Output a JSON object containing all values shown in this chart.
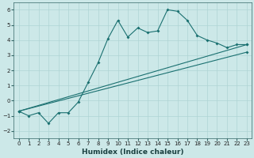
{
  "xlabel": "Humidex (Indice chaleur)",
  "bg_color": "#cce8e8",
  "line_color": "#1a7070",
  "grid_color": "#afd4d4",
  "xlim": [
    -0.5,
    23.5
  ],
  "ylim": [
    -2.5,
    6.5
  ],
  "xticks": [
    0,
    1,
    2,
    3,
    4,
    5,
    6,
    7,
    8,
    9,
    10,
    11,
    12,
    13,
    14,
    15,
    16,
    17,
    18,
    19,
    20,
    21,
    22,
    23
  ],
  "yticks": [
    -2,
    -1,
    0,
    1,
    2,
    3,
    4,
    5,
    6
  ],
  "line1_x": [
    0,
    1,
    2,
    3,
    4,
    5,
    6,
    7,
    8,
    9,
    10,
    11,
    12,
    13,
    14,
    15,
    16,
    17,
    18,
    19,
    20,
    21,
    22,
    23
  ],
  "line1_y": [
    -0.7,
    -1.0,
    -0.8,
    -1.5,
    -0.8,
    -0.8,
    -0.1,
    1.2,
    2.5,
    4.1,
    5.3,
    4.2,
    4.8,
    4.5,
    4.6,
    6.0,
    5.9,
    5.3,
    4.3,
    4.0,
    3.8,
    3.5,
    3.7,
    3.7
  ],
  "line2_x": [
    0,
    23
  ],
  "line2_y": [
    -0.7,
    3.7
  ],
  "line3_x": [
    0,
    23
  ],
  "line3_y": [
    -0.7,
    3.2
  ]
}
